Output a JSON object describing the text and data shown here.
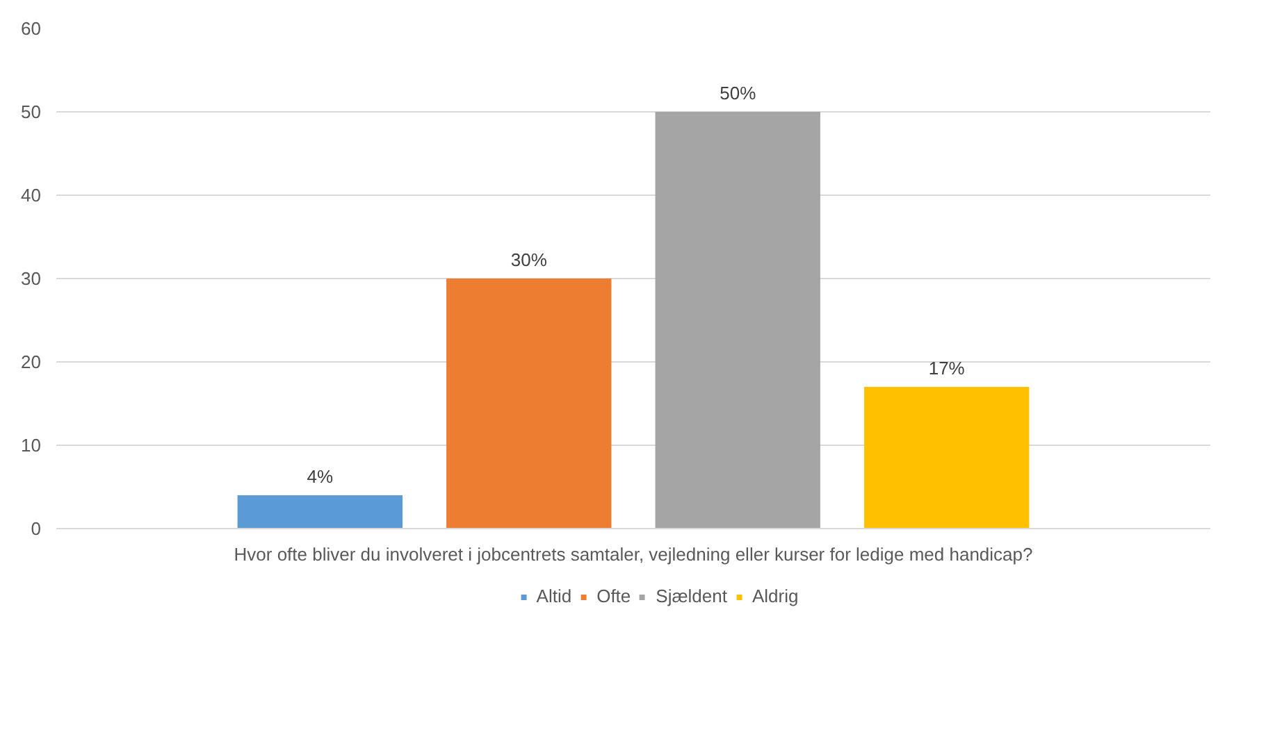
{
  "chart_data": {
    "type": "bar",
    "categories": [
      "Hvor ofte bliver du involveret i jobcentrets samtaler, vejledning eller kurser for ledige med handicap?"
    ],
    "series": [
      {
        "name": "Altid",
        "color": "#5b9bd5",
        "values": [
          4
        ],
        "value_labels": [
          "4%"
        ]
      },
      {
        "name": "Ofte",
        "color": "#ed7d31",
        "values": [
          30
        ],
        "value_labels": [
          "30%"
        ]
      },
      {
        "name": "Sjældent",
        "color": "#a5a5a5",
        "values": [
          50
        ],
        "value_labels": [
          "50%"
        ]
      },
      {
        "name": "Aldrig",
        "color": "#ffc000",
        "values": [
          17
        ],
        "value_labels": [
          "17%"
        ]
      }
    ],
    "ylim": [
      0,
      60
    ],
    "yticks": [
      0,
      10,
      20,
      30,
      40,
      50,
      60
    ],
    "grid": "y",
    "legend": "bottom"
  }
}
